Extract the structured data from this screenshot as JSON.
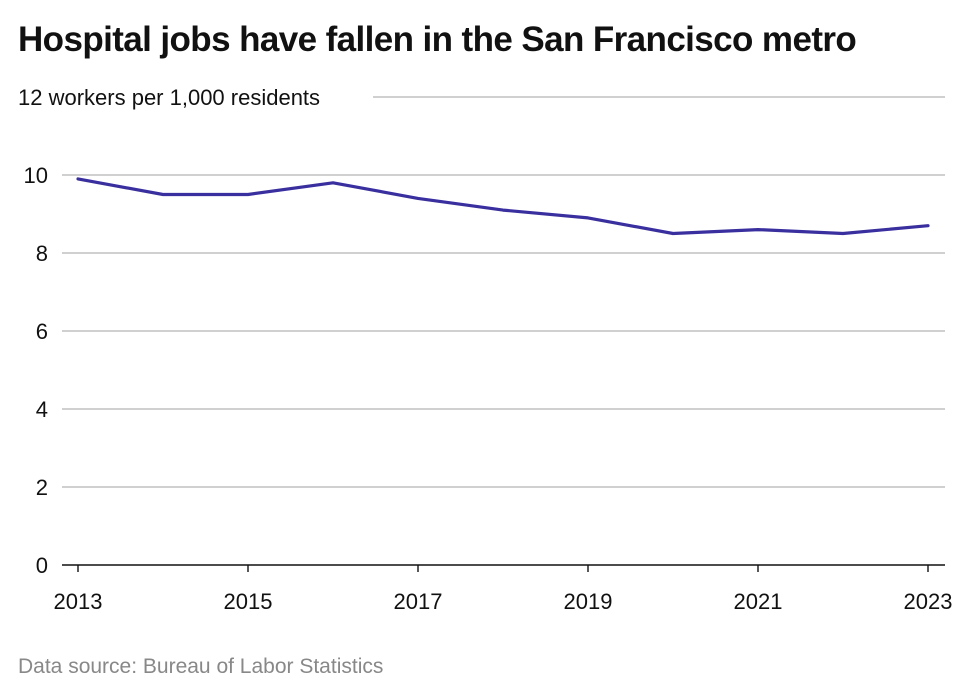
{
  "header": {
    "title": "Hospital jobs have fallen in the San Francisco metro"
  },
  "footer": {
    "source": "Data source: Bureau of Labor Statistics"
  },
  "chart_data": {
    "type": "line",
    "title": "Hospital jobs have fallen in the San Francisco metro",
    "xlabel": "",
    "ylabel": "workers per 1,000 residents",
    "top_tick_annotation": "12 workers per 1,000 residents",
    "x": [
      2013,
      2014,
      2015,
      2016,
      2017,
      2018,
      2019,
      2020,
      2021,
      2022,
      2023
    ],
    "x_tick_labels": [
      "2013",
      "2015",
      "2017",
      "2019",
      "2021",
      "2023"
    ],
    "y_ticks": [
      0,
      2,
      4,
      6,
      8,
      10,
      12
    ],
    "y_tick_labels": [
      "0",
      "2",
      "4",
      "6",
      "8",
      "10"
    ],
    "ylim": [
      0,
      12
    ],
    "xlim": [
      2013,
      2023
    ],
    "grid": "horizontal",
    "series": [
      {
        "color": "#3a2f9e",
        "values": [
          9.9,
          9.5,
          9.5,
          9.8,
          9.4,
          9.1,
          8.9,
          8.5,
          8.6,
          8.5,
          8.7
        ]
      }
    ]
  }
}
